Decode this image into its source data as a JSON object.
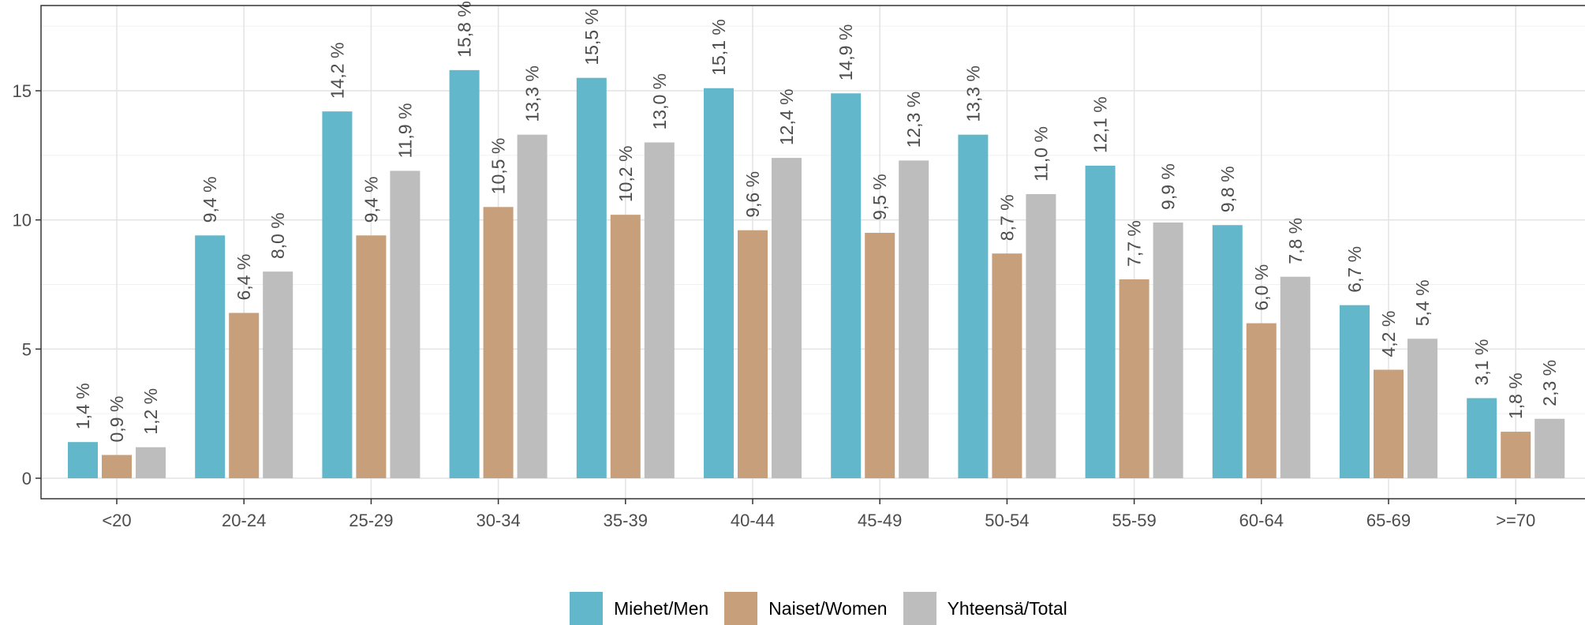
{
  "chart_data": {
    "type": "bar",
    "title": "",
    "xlabel": "",
    "ylabel": "",
    "ylim": [
      0,
      18.3
    ],
    "yticks": [
      0,
      5,
      10,
      15
    ],
    "grid": true,
    "legend_position": "bottom",
    "categories": [
      "<20",
      "20-24",
      "25-29",
      "30-34",
      "35-39",
      "40-44",
      "45-49",
      "50-54",
      "55-59",
      "60-64",
      "65-69",
      ">=70"
    ],
    "series": [
      {
        "name": "Miehet/Men",
        "color": "#62b8ca",
        "values": [
          1.4,
          9.4,
          14.2,
          15.8,
          15.5,
          15.1,
          14.9,
          13.3,
          12.1,
          9.8,
          6.7,
          3.1
        ],
        "labels": [
          "1,4 %",
          "9,4 %",
          "14,2 %",
          "15,8 %",
          "15,5 %",
          "15,1 %",
          "14,9 %",
          "13,3 %",
          "12,1 %",
          "9,8 %",
          "6,7 %",
          "3,1 %"
        ]
      },
      {
        "name": "Naiset/Women",
        "color": "#c89f7b",
        "values": [
          0.9,
          6.4,
          9.4,
          10.5,
          10.2,
          9.6,
          9.5,
          8.7,
          7.7,
          6.0,
          4.2,
          1.8
        ],
        "labels": [
          "0,9 %",
          "6,4 %",
          "9,4 %",
          "10,5 %",
          "10,2 %",
          "9,6 %",
          "9,5 %",
          "8,7 %",
          "7,7 %",
          "6,0 %",
          "4,2 %",
          "1,8 %"
        ]
      },
      {
        "name": "Yhteensä/Total",
        "color": "#bdbdbd",
        "values": [
          1.2,
          8.0,
          11.9,
          13.3,
          13.0,
          12.4,
          12.3,
          11.0,
          9.9,
          7.8,
          5.4,
          2.3
        ],
        "labels": [
          "1,2 %",
          "8,0 %",
          "11,9 %",
          "13,3 %",
          "13,0 %",
          "12,4 %",
          "12,3 %",
          "11,0 %",
          "9,9 %",
          "7,8 %",
          "5,4 %",
          "2,3 %"
        ]
      }
    ]
  }
}
